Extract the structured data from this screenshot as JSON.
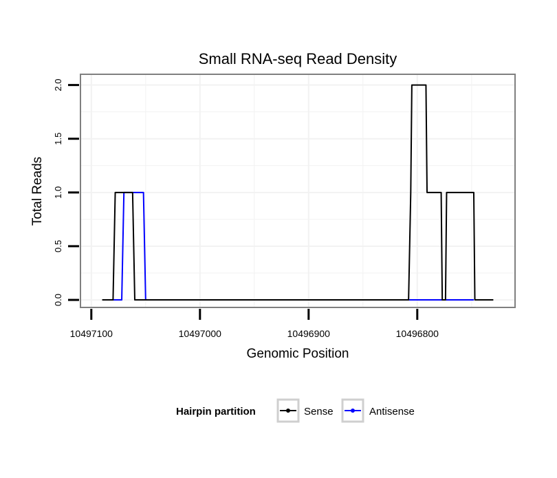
{
  "chart_data": {
    "type": "line",
    "title": "Small RNA-seq Read Density",
    "xlabel": "Genomic Position",
    "ylabel": "Total Reads",
    "x_reversed": true,
    "xlim": [
      10497110,
      10496710
    ],
    "ylim": [
      -0.07,
      2.1
    ],
    "x_ticks": [
      10497100,
      10497000,
      10496900,
      10496800
    ],
    "x_tick_labels": [
      "10497100",
      "10497000",
      "10496900",
      "10496800"
    ],
    "y_ticks": [
      0.0,
      0.5,
      1.0,
      1.5,
      2.0
    ],
    "y_tick_labels": [
      "0.0",
      "0.5",
      "1.0",
      "1.5",
      "2.0"
    ],
    "grid": true,
    "legend": {
      "title": "Hairpin partition",
      "position": "bottom"
    },
    "series": [
      {
        "name": "Sense",
        "color": "#000000",
        "x": [
          10497090,
          10497080,
          10497078,
          10497062,
          10497060,
          10496808,
          10496806,
          10496805,
          10496792,
          10496791,
          10496778,
          10496777,
          10496774,
          10496773,
          10496748,
          10496747,
          10496730
        ],
        "y": [
          0,
          0,
          1,
          1,
          0,
          0,
          1,
          2,
          2,
          1,
          1,
          0,
          0,
          1,
          1,
          0,
          0
        ]
      },
      {
        "name": "Antisense",
        "color": "#0000ff",
        "x": [
          10497080,
          10497072,
          10497070,
          10497052,
          10497050,
          10496748
        ],
        "y": [
          0,
          0,
          1,
          1,
          0,
          0
        ]
      }
    ]
  }
}
